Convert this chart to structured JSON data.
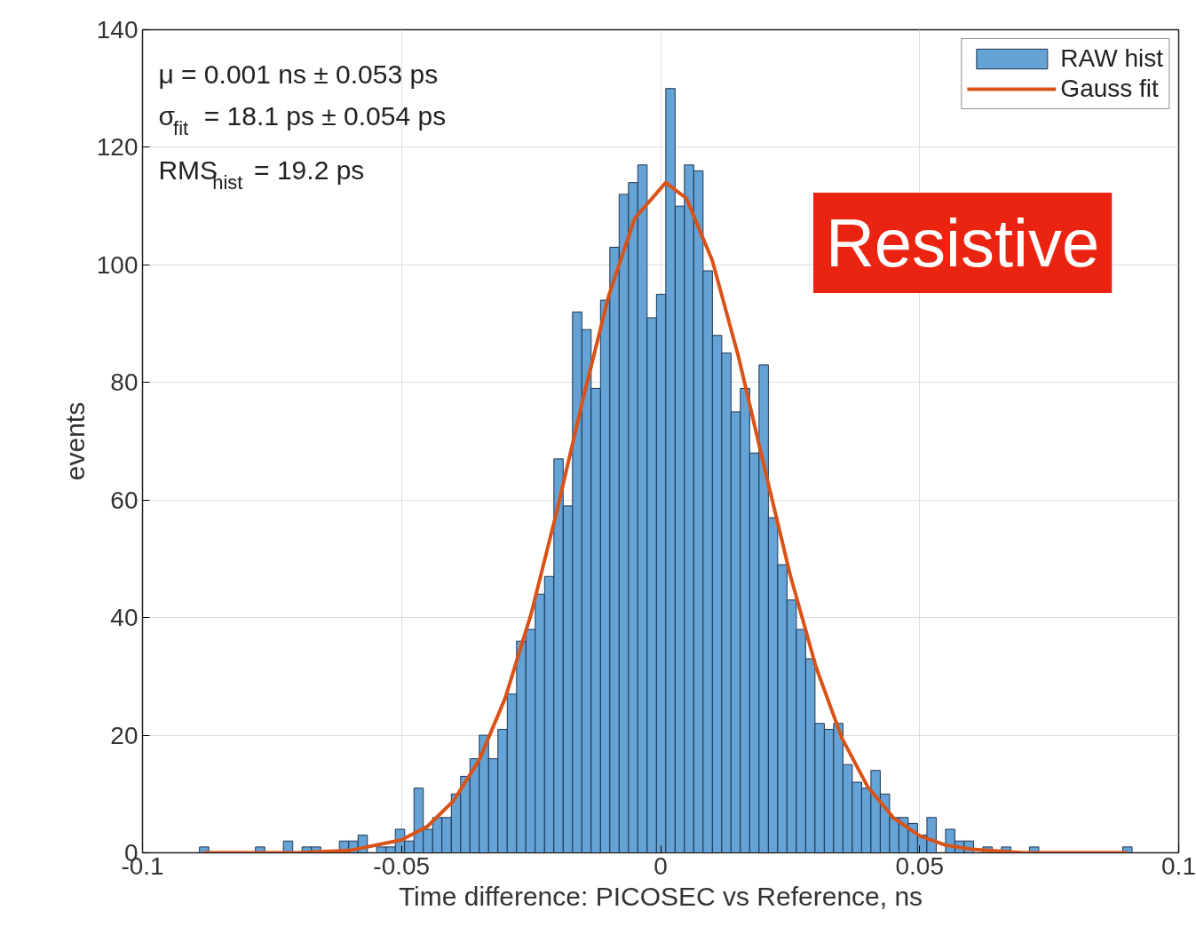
{
  "chart_data": {
    "type": "histogram",
    "xlabel": "Time difference: PICOSEC vs Reference, ns",
    "ylabel": "events",
    "bins": [
      -0.089,
      -0.0872,
      -0.0854,
      -0.0836,
      -0.0818,
      -0.08,
      -0.0782,
      -0.0764,
      -0.0746,
      -0.0728,
      -0.071,
      -0.0692,
      -0.0674,
      -0.0656,
      -0.0638,
      -0.062,
      -0.0602,
      -0.0584,
      -0.0566,
      -0.0548,
      -0.053,
      -0.0512,
      -0.0494,
      -0.0476,
      -0.0458,
      -0.044,
      -0.0422,
      -0.0404,
      -0.0386,
      -0.0368,
      -0.035,
      -0.0332,
      -0.0314,
      -0.0296,
      -0.0278,
      -0.026,
      -0.0242,
      -0.0224,
      -0.0206,
      -0.0188,
      -0.017,
      -0.0152,
      -0.0134,
      -0.0116,
      -0.0098,
      -0.008,
      -0.0062,
      -0.0044,
      -0.0026,
      -0.0008,
      0.001,
      0.0028,
      0.0046,
      0.0064,
      0.0082,
      0.01,
      0.0118,
      0.0136,
      0.0154,
      0.0172,
      0.019,
      0.0208,
      0.0226,
      0.0244,
      0.0262,
      0.028,
      0.0298,
      0.0316,
      0.0334,
      0.0352,
      0.037,
      0.0388,
      0.0406,
      0.0424,
      0.0442,
      0.046,
      0.0478,
      0.0496,
      0.0514,
      0.0532,
      0.055,
      0.0568,
      0.0586,
      0.0604,
      0.0622,
      0.064,
      0.0658,
      0.0676,
      0.0694,
      0.0712,
      0.073,
      0.0748,
      0.0766,
      0.0784,
      0.0802,
      0.082,
      0.0838,
      0.0856,
      0.0874,
      0.0892,
      0.091
    ],
    "series": [
      {
        "name": "RAW hist",
        "color": "#65a3d6",
        "values": [
          1,
          0,
          0,
          0,
          0,
          0,
          1,
          0,
          0,
          2,
          0,
          1,
          1,
          0,
          0,
          2,
          2,
          3,
          0,
          1,
          1,
          4,
          2,
          11,
          4,
          6,
          6,
          10,
          13,
          16,
          20,
          16,
          21,
          27,
          36,
          38,
          44,
          47,
          67,
          59,
          92,
          89,
          79,
          94,
          103,
          112,
          114,
          117,
          91,
          95,
          130,
          110,
          117,
          116,
          99,
          88,
          85,
          75,
          79,
          68,
          83,
          57,
          49,
          43,
          38,
          33,
          22,
          21,
          22,
          15,
          12,
          11,
          14,
          10,
          6,
          6,
          5,
          3,
          6,
          0,
          4,
          2,
          2,
          0,
          1,
          0,
          1,
          0,
          0,
          1,
          0,
          0,
          0,
          0,
          0,
          0,
          0,
          0,
          0,
          1
        ]
      },
      {
        "name": "Gauss fit",
        "type": "line",
        "color": "#d95319",
        "x": [
          -0.088,
          -0.07,
          -0.06,
          -0.05,
          -0.045,
          -0.04,
          -0.035,
          -0.03,
          -0.025,
          -0.02,
          -0.015,
          -0.01,
          -0.005,
          0.001,
          0.005,
          0.01,
          0.015,
          0.02,
          0.025,
          0.03,
          0.035,
          0.04,
          0.045,
          0.05,
          0.055,
          0.06,
          0.07,
          0.09
        ],
        "values": [
          0,
          0,
          0.4,
          2.2,
          4.5,
          8.8,
          15.8,
          26.3,
          40.6,
          58.2,
          77.1,
          94.8,
          107.9,
          114,
          111.3,
          100.7,
          84.5,
          65.7,
          47.3,
          31.6,
          19.5,
          11.2,
          5.9,
          2.9,
          1.3,
          0.6,
          0,
          0
        ]
      }
    ],
    "xlim": [
      -0.1,
      0.1
    ],
    "xticks": [
      -0.1,
      -0.05,
      0,
      0.05,
      0.1
    ],
    "ylim": [
      0,
      140
    ],
    "yticks": [
      0,
      20,
      40,
      60,
      80,
      100,
      120,
      140
    ],
    "grid": true,
    "legend": "top right",
    "annotations": [
      "μ = 0.001 ns ± 0.053 ps",
      "σ$_{fit}$ = 18.1 ps ± 0.054 ps",
      "RMS$_{hist}$ = 19.2 ps",
      "Resistive"
    ]
  }
}
